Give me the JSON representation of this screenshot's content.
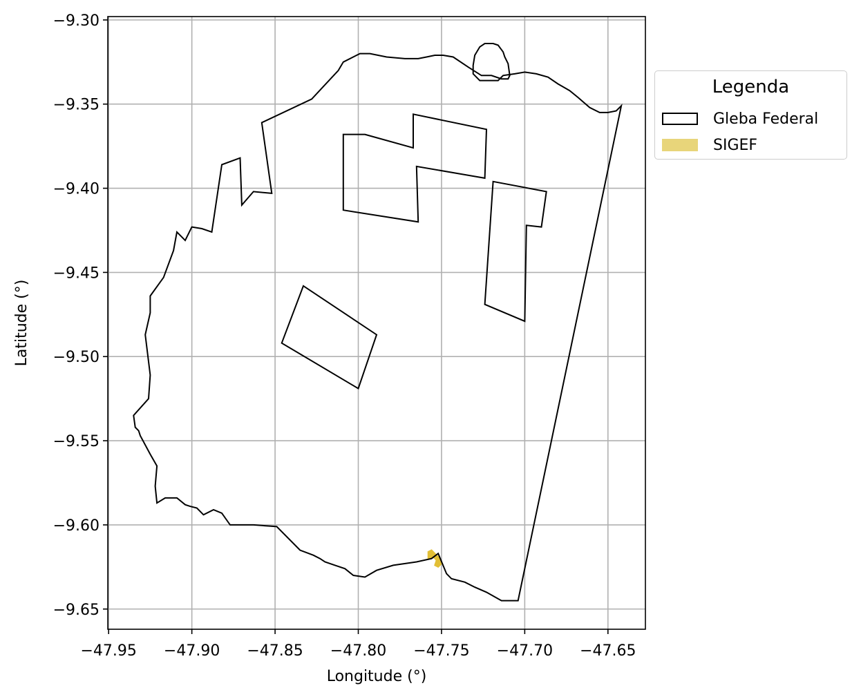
{
  "chart_data": {
    "type": "map",
    "xlabel": "Longitude (°)",
    "ylabel": "Latitude (°)",
    "xlim": [
      -47.9505,
      -47.6275
    ],
    "ylim": [
      -9.662,
      -9.298
    ],
    "xticks": [
      -47.95,
      -47.9,
      -47.85,
      -47.8,
      -47.75,
      -47.7,
      -47.65
    ],
    "xtick_labels": [
      "−47.95",
      "−47.90",
      "−47.85",
      "−47.80",
      "−47.75",
      "−47.70",
      "−47.65"
    ],
    "yticks": [
      -9.3,
      -9.35,
      -9.4,
      -9.45,
      -9.5,
      -9.55,
      -9.6,
      -9.65
    ],
    "ytick_labels": [
      "−9.30",
      "−9.35",
      "−9.40",
      "−9.45",
      "−9.50",
      "−9.55",
      "−9.60",
      "−9.65"
    ],
    "grid": true,
    "legend": {
      "title": "Legenda",
      "placement": "outside-right",
      "entries": [
        {
          "label": "Gleba Federal",
          "style": "outline",
          "color": "#000000"
        },
        {
          "label": "SIGEF",
          "style": "fill",
          "color": "#e8d57a"
        }
      ]
    },
    "layers": {
      "gleba_federal": {
        "color": "#000000",
        "polygons": [
          [
            [
              -47.642,
              -9.351
            ],
            [
              -47.645,
              -9.354
            ],
            [
              -47.65,
              -9.355
            ],
            [
              -47.655,
              -9.355
            ],
            [
              -47.661,
              -9.352
            ],
            [
              -47.668,
              -9.346
            ],
            [
              -47.673,
              -9.342
            ],
            [
              -47.68,
              -9.338
            ],
            [
              -47.686,
              -9.334
            ],
            [
              -47.693,
              -9.332
            ],
            [
              -47.7,
              -9.331
            ],
            [
              -47.706,
              -9.332
            ],
            [
              -47.713,
              -9.333
            ],
            [
              -47.716,
              -9.336
            ],
            [
              -47.723,
              -9.336
            ],
            [
              -47.727,
              -9.336
            ],
            [
              -47.731,
              -9.332
            ],
            [
              -47.731,
              -9.327
            ],
            [
              -47.73,
              -9.321
            ],
            [
              -47.727,
              -9.316
            ],
            [
              -47.724,
              -9.314
            ],
            [
              -47.719,
              -9.314
            ],
            [
              -47.716,
              -9.315
            ],
            [
              -47.713,
              -9.319
            ],
            [
              -47.712,
              -9.322
            ],
            [
              -47.71,
              -9.326
            ],
            [
              -47.709,
              -9.333
            ],
            [
              -47.71,
              -9.335
            ],
            [
              -47.714,
              -9.335
            ],
            [
              -47.72,
              -9.333
            ],
            [
              -47.726,
              -9.333
            ],
            [
              -47.734,
              -9.328
            ],
            [
              -47.743,
              -9.322
            ],
            [
              -47.749,
              -9.321
            ],
            [
              -47.754,
              -9.321
            ],
            [
              -47.759,
              -9.322
            ],
            [
              -47.764,
              -9.323
            ],
            [
              -47.772,
              -9.323
            ],
            [
              -47.783,
              -9.322
            ],
            [
              -47.793,
              -9.32
            ],
            [
              -47.799,
              -9.32
            ],
            [
              -47.801,
              -9.321
            ],
            [
              -47.809,
              -9.325
            ],
            [
              -47.812,
              -9.33
            ],
            [
              -47.828,
              -9.347
            ],
            [
              -47.858,
              -9.361
            ],
            [
              -47.852,
              -9.403
            ],
            [
              -47.863,
              -9.402
            ],
            [
              -47.87,
              -9.41
            ],
            [
              -47.871,
              -9.382
            ],
            [
              -47.882,
              -9.386
            ],
            [
              -47.888,
              -9.426
            ],
            [
              -47.894,
              -9.424
            ],
            [
              -47.9,
              -9.423
            ],
            [
              -47.904,
              -9.431
            ],
            [
              -47.909,
              -9.426
            ],
            [
              -47.911,
              -9.437
            ],
            [
              -47.917,
              -9.453
            ],
            [
              -47.925,
              -9.464
            ],
            [
              -47.925,
              -9.474
            ],
            [
              -47.928,
              -9.487
            ],
            [
              -47.925,
              -9.511
            ],
            [
              -47.926,
              -9.525
            ],
            [
              -47.935,
              -9.535
            ],
            [
              -47.934,
              -9.542
            ],
            [
              -47.932,
              -9.544
            ],
            [
              -47.931,
              -9.547
            ],
            [
              -47.925,
              -9.558
            ],
            [
              -47.921,
              -9.565
            ],
            [
              -47.922,
              -9.577
            ],
            [
              -47.921,
              -9.587
            ],
            [
              -47.916,
              -9.584
            ],
            [
              -47.909,
              -9.584
            ],
            [
              -47.904,
              -9.588
            ],
            [
              -47.901,
              -9.589
            ],
            [
              -47.897,
              -9.59
            ],
            [
              -47.893,
              -9.594
            ],
            [
              -47.887,
              -9.591
            ],
            [
              -47.882,
              -9.593
            ],
            [
              -47.877,
              -9.6
            ],
            [
              -47.87,
              -9.6
            ],
            [
              -47.863,
              -9.6
            ],
            [
              -47.849,
              -9.601
            ],
            [
              -47.835,
              -9.615
            ],
            [
              -47.827,
              -9.618
            ],
            [
              -47.823,
              -9.62
            ],
            [
              -47.82,
              -9.622
            ],
            [
              -47.814,
              -9.624
            ],
            [
              -47.808,
              -9.626
            ],
            [
              -47.803,
              -9.63
            ],
            [
              -47.796,
              -9.631
            ],
            [
              -47.789,
              -9.627
            ],
            [
              -47.779,
              -9.624
            ],
            [
              -47.765,
              -9.622
            ],
            [
              -47.756,
              -9.62
            ],
            [
              -47.752,
              -9.617
            ],
            [
              -47.747,
              -9.629
            ],
            [
              -47.744,
              -9.632
            ],
            [
              -47.736,
              -9.634
            ],
            [
              -47.73,
              -9.637
            ],
            [
              -47.723,
              -9.64
            ],
            [
              -47.714,
              -9.645
            ],
            [
              -47.704,
              -9.645
            ],
            [
              -47.642,
              -9.351
            ]
          ],
          [
            [
              -47.796,
              -9.368
            ],
            [
              -47.767,
              -9.376
            ],
            [
              -47.767,
              -9.356
            ],
            [
              -47.723,
              -9.365
            ],
            [
              -47.724,
              -9.394
            ],
            [
              -47.765,
              -9.387
            ],
            [
              -47.764,
              -9.42
            ],
            [
              -47.809,
              -9.413
            ],
            [
              -47.809,
              -9.368
            ],
            [
              -47.796,
              -9.368
            ]
          ],
          [
            [
              -47.719,
              -9.396
            ],
            [
              -47.687,
              -9.402
            ],
            [
              -47.69,
              -9.423
            ],
            [
              -47.699,
              -9.422
            ],
            [
              -47.7,
              -9.479
            ],
            [
              -47.724,
              -9.469
            ],
            [
              -47.719,
              -9.396
            ]
          ],
          [
            [
              -47.833,
              -9.458
            ],
            [
              -47.789,
              -9.487
            ],
            [
              -47.8,
              -9.519
            ],
            [
              -47.846,
              -9.492
            ],
            [
              -47.833,
              -9.458
            ]
          ]
        ]
      },
      "sigef": {
        "color": "#e2bf36",
        "polygons": [
          [
            [
              -47.758,
              -9.616
            ],
            [
              -47.756,
              -9.615
            ],
            [
              -47.753,
              -9.618
            ],
            [
              -47.751,
              -9.62
            ],
            [
              -47.75,
              -9.623
            ],
            [
              -47.752,
              -9.625
            ],
            [
              -47.754,
              -9.624
            ],
            [
              -47.753,
              -9.621
            ],
            [
              -47.755,
              -9.619
            ],
            [
              -47.758,
              -9.62
            ],
            [
              -47.758,
              -9.616
            ]
          ]
        ]
      }
    }
  }
}
